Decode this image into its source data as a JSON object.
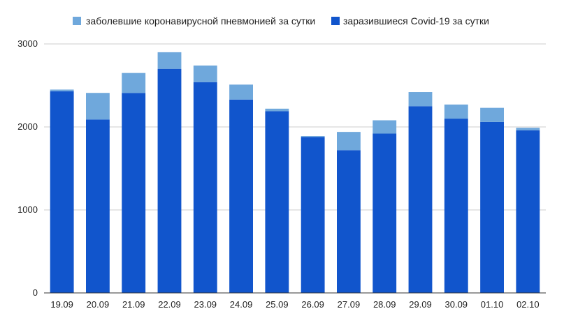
{
  "chart_data": {
    "type": "bar",
    "stacked": true,
    "categories": [
      "19.09",
      "20.09",
      "21.09",
      "22.09",
      "23.09",
      "24.09",
      "25.09",
      "26.09",
      "27.09",
      "28.09",
      "29.09",
      "30.09",
      "01.10",
      "02.10"
    ],
    "series": [
      {
        "name": "заразившиеся Covid-19 за сутки",
        "color": "#1155cc",
        "values": [
          2430,
          2090,
          2410,
          2700,
          2540,
          2330,
          2190,
          1880,
          1720,
          1920,
          2250,
          2100,
          2060,
          1960
        ]
      },
      {
        "name": "заболевшие коронавирусной пневмонией за сутки",
        "color": "#6fa8dc",
        "values": [
          20,
          320,
          240,
          200,
          200,
          180,
          30,
          10,
          220,
          160,
          170,
          170,
          170,
          30
        ]
      }
    ],
    "legend_order": [
      {
        "label": "заболевшие коронавирусной пневмонией за сутки",
        "color": "#6fa8dc"
      },
      {
        "label": "заразившиеся Covid-19 за сутки",
        "color": "#1155cc"
      }
    ],
    "legend_position": "top",
    "y_ticks": [
      "0",
      "1000",
      "2000",
      "3000"
    ],
    "ylim": [
      0,
      3000
    ],
    "grid": true,
    "title": "",
    "xlabel": "",
    "ylabel": ""
  }
}
